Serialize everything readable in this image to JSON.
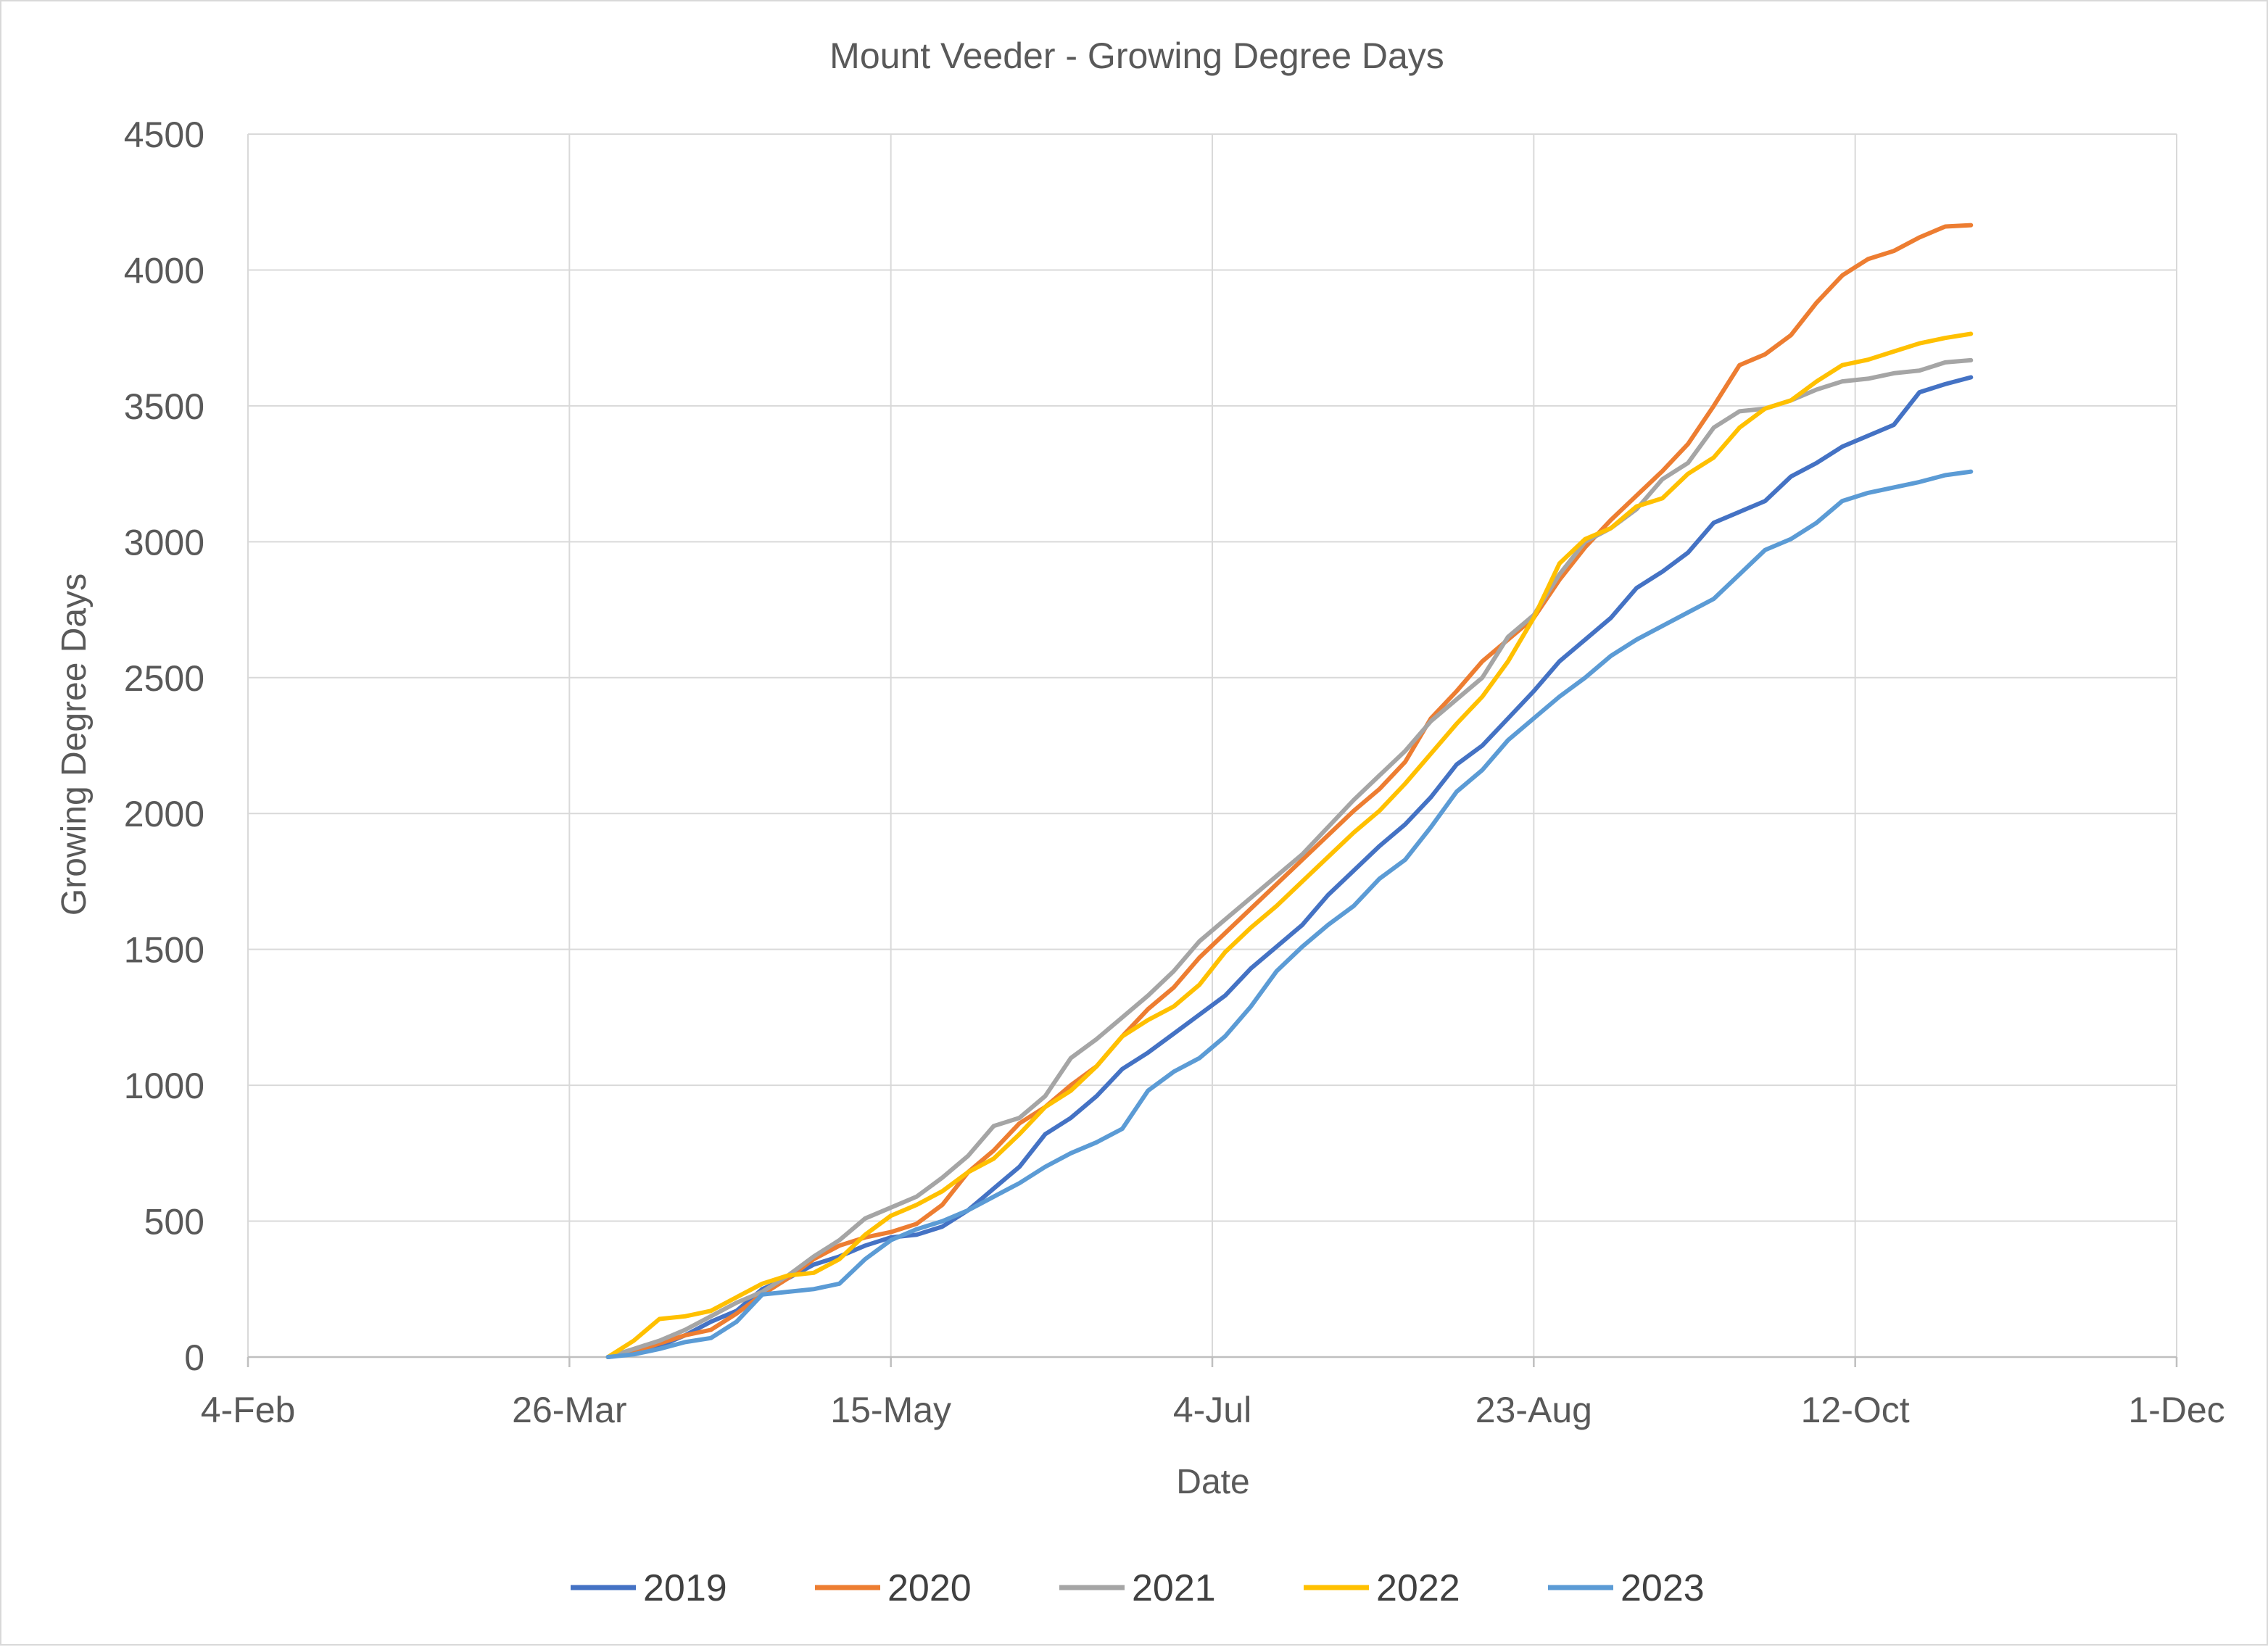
{
  "chart_data": {
    "type": "line",
    "title": "Mount Veeder - Growing Degree Days",
    "xlabel": "Date",
    "ylabel": "Growing Degree Days",
    "x_ticks": [
      "4-Feb",
      "26-Mar",
      "15-May",
      "4-Jul",
      "23-Aug",
      "12-Oct",
      "1-Dec"
    ],
    "x_tick_days": [
      35,
      85,
      135,
      185,
      235,
      285,
      335
    ],
    "xlim_days": [
      35,
      335
    ],
    "y_ticks": [
      0,
      500,
      1000,
      1500,
      2000,
      2500,
      3000,
      3500,
      4000,
      4500
    ],
    "ylim": [
      0,
      4500
    ],
    "grid": true,
    "legend_position": "bottom",
    "series": [
      {
        "name": "2019",
        "color": "#4472C4",
        "day": [
          91,
          95,
          99,
          103,
          107,
          111,
          115,
          119,
          123,
          127,
          131,
          135,
          139,
          143,
          147,
          151,
          155,
          159,
          163,
          167,
          171,
          175,
          179,
          183,
          187,
          191,
          195,
          199,
          203,
          207,
          211,
          215,
          219,
          223,
          227,
          231,
          235,
          239,
          243,
          247,
          251,
          255,
          259,
          263,
          267,
          271,
          275,
          279,
          283,
          287,
          291,
          295,
          299,
          303
        ],
        "values": [
          0,
          15,
          40,
          80,
          130,
          170,
          250,
          290,
          340,
          370,
          410,
          440,
          450,
          480,
          540,
          620,
          700,
          820,
          880,
          960,
          1060,
          1120,
          1190,
          1260,
          1330,
          1430,
          1510,
          1590,
          1700,
          1790,
          1880,
          1960,
          2060,
          2180,
          2250,
          2350,
          2450,
          2560,
          2640,
          2720,
          2830,
          2890,
          2960,
          3070,
          3110,
          3150,
          3240,
          3290,
          3350,
          3390,
          3430,
          3550,
          3580,
          3605
        ]
      },
      {
        "name": "2020",
        "color": "#ED7D31",
        "day": [
          91,
          95,
          99,
          103,
          107,
          111,
          115,
          119,
          123,
          127,
          131,
          135,
          139,
          143,
          147,
          151,
          155,
          159,
          163,
          167,
          171,
          175,
          179,
          183,
          187,
          191,
          195,
          199,
          203,
          207,
          211,
          215,
          219,
          223,
          227,
          231,
          235,
          239,
          243,
          247,
          251,
          255,
          259,
          263,
          267,
          271,
          275,
          279,
          283,
          287,
          291,
          295,
          299,
          303
        ],
        "values": [
          0,
          20,
          50,
          80,
          100,
          160,
          230,
          290,
          360,
          410,
          440,
          460,
          490,
          560,
          680,
          760,
          860,
          920,
          1000,
          1070,
          1180,
          1280,
          1360,
          1470,
          1560,
          1650,
          1740,
          1830,
          1920,
          2010,
          2090,
          2190,
          2350,
          2450,
          2560,
          2640,
          2720,
          2860,
          2980,
          3080,
          3170,
          3260,
          3360,
          3500,
          3650,
          3690,
          3760,
          3880,
          3980,
          4040,
          4070,
          4120,
          4160,
          4165
        ]
      },
      {
        "name": "2021",
        "color": "#A5A5A5",
        "day": [
          91,
          95,
          99,
          103,
          107,
          111,
          115,
          119,
          123,
          127,
          131,
          135,
          139,
          143,
          147,
          151,
          155,
          159,
          163,
          167,
          171,
          175,
          179,
          183,
          187,
          191,
          195,
          199,
          203,
          207,
          211,
          215,
          219,
          223,
          227,
          231,
          235,
          239,
          243,
          247,
          251,
          255,
          259,
          263,
          267,
          271,
          275,
          279,
          283,
          287,
          291,
          295,
          299,
          303
        ],
        "values": [
          0,
          30,
          60,
          100,
          150,
          200,
          240,
          300,
          370,
          430,
          510,
          550,
          590,
          660,
          740,
          850,
          880,
          960,
          1100,
          1170,
          1250,
          1330,
          1420,
          1530,
          1610,
          1690,
          1770,
          1850,
          1950,
          2050,
          2140,
          2230,
          2340,
          2420,
          2500,
          2650,
          2730,
          2880,
          3000,
          3050,
          3120,
          3230,
          3290,
          3420,
          3480,
          3490,
          3520,
          3560,
          3590,
          3600,
          3620,
          3630,
          3660,
          3668
        ]
      },
      {
        "name": "2022",
        "color": "#FFC000",
        "day": [
          91,
          95,
          99,
          103,
          107,
          111,
          115,
          119,
          123,
          127,
          131,
          135,
          139,
          143,
          147,
          151,
          155,
          159,
          163,
          167,
          171,
          175,
          179,
          183,
          187,
          191,
          195,
          199,
          203,
          207,
          211,
          215,
          219,
          223,
          227,
          231,
          235,
          239,
          243,
          247,
          251,
          255,
          259,
          263,
          267,
          271,
          275,
          279,
          283,
          287,
          291,
          295,
          299,
          303
        ],
        "values": [
          0,
          60,
          140,
          150,
          170,
          220,
          270,
          300,
          310,
          360,
          450,
          520,
          560,
          610,
          680,
          730,
          820,
          920,
          980,
          1070,
          1180,
          1240,
          1290,
          1370,
          1490,
          1580,
          1660,
          1750,
          1840,
          1930,
          2010,
          2110,
          2220,
          2330,
          2430,
          2560,
          2720,
          2920,
          3010,
          3050,
          3130,
          3160,
          3250,
          3310,
          3420,
          3490,
          3520,
          3590,
          3650,
          3670,
          3700,
          3730,
          3750,
          3765
        ]
      },
      {
        "name": "2023",
        "color": "#5B9BD5",
        "day": [
          91,
          95,
          99,
          103,
          107,
          111,
          115,
          119,
          123,
          127,
          131,
          135,
          139,
          143,
          147,
          151,
          155,
          159,
          163,
          167,
          171,
          175,
          179,
          183,
          187,
          191,
          195,
          199,
          203,
          207,
          211,
          215,
          219,
          223,
          227,
          231,
          235,
          239,
          243,
          247,
          251,
          255,
          259,
          263,
          267,
          271,
          275,
          279,
          283,
          287,
          291,
          295,
          299,
          303
        ],
        "values": [
          0,
          10,
          30,
          55,
          70,
          130,
          230,
          240,
          250,
          270,
          360,
          430,
          470,
          500,
          540,
          590,
          640,
          700,
          750,
          790,
          840,
          980,
          1050,
          1100,
          1180,
          1290,
          1420,
          1510,
          1590,
          1660,
          1760,
          1830,
          1950,
          2080,
          2160,
          2270,
          2350,
          2430,
          2500,
          2580,
          2640,
          2690,
          2740,
          2790,
          2880,
          2970,
          3010,
          3070,
          3150,
          3180,
          3200,
          3220,
          3245,
          3258
        ]
      }
    ]
  }
}
